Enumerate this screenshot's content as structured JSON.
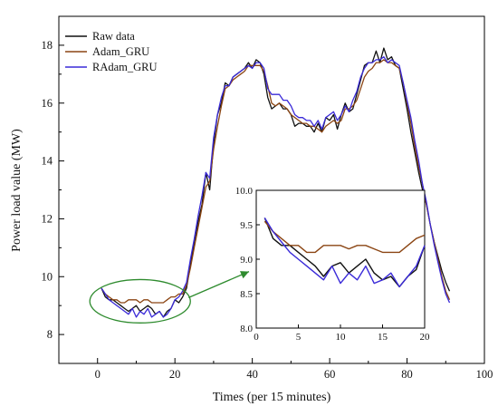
{
  "chart_data": {
    "type": "line",
    "xlabel": "Times (per 15 minutes)",
    "ylabel": "Power load value (MW)",
    "xlim": [
      -10,
      100
    ],
    "ylim": [
      7,
      19
    ],
    "xticks": [
      0,
      20,
      40,
      60,
      80,
      100
    ],
    "yticks": [
      8,
      10,
      12,
      14,
      16,
      18
    ],
    "legend_position": "top-left",
    "colors": {
      "Raw data": "#111111",
      "Adam_GRU": "#8b4513",
      "RAdam_GRU": "#3a2ad8",
      "annotation": "#2e8b2e"
    },
    "series": [
      {
        "name": "Raw data",
        "x": [
          1,
          2,
          3,
          4,
          5,
          6,
          7,
          8,
          9,
          10,
          11,
          12,
          13,
          14,
          15,
          16,
          17,
          18,
          19,
          20,
          21,
          22,
          23,
          24,
          25,
          26,
          27,
          28,
          29,
          30,
          31,
          32,
          33,
          34,
          35,
          36,
          37,
          38,
          39,
          40,
          41,
          42,
          43,
          44,
          45,
          46,
          47,
          48,
          49,
          50,
          51,
          52,
          53,
          54,
          55,
          56,
          57,
          58,
          59,
          60,
          61,
          62,
          63,
          64,
          65,
          66,
          67,
          68,
          69,
          70,
          71,
          72,
          73,
          74,
          75,
          76,
          77,
          78,
          79,
          80,
          81,
          82,
          83,
          84,
          85,
          86,
          87,
          88,
          89,
          90,
          91
        ],
        "y": [
          9.6,
          9.3,
          9.2,
          9.2,
          9.1,
          9.0,
          8.9,
          8.8,
          8.9,
          9.0,
          8.8,
          8.9,
          9.0,
          8.9,
          8.7,
          8.8,
          8.6,
          8.8,
          8.9,
          9.2,
          9.1,
          9.3,
          9.6,
          10.4,
          11.2,
          11.9,
          12.5,
          13.6,
          13.0,
          14.6,
          15.6,
          16.0,
          16.7,
          16.6,
          16.9,
          17.0,
          17.1,
          17.2,
          17.4,
          17.2,
          17.5,
          17.4,
          17.0,
          16.2,
          15.8,
          15.9,
          16.0,
          15.8,
          15.8,
          15.6,
          15.2,
          15.3,
          15.3,
          15.2,
          15.2,
          15.0,
          15.3,
          15.0,
          15.5,
          15.4,
          15.6,
          15.1,
          15.6,
          16.0,
          15.7,
          15.8,
          16.3,
          16.8,
          17.3,
          17.4,
          17.4,
          17.8,
          17.4,
          17.9,
          17.5,
          17.6,
          17.3,
          17.2,
          16.5,
          15.8,
          15.0,
          14.3,
          13.6,
          13.0,
          12.5,
          11.8,
          11.2,
          10.7,
          10.2,
          9.8,
          9.5
        ],
        "linestyle": "solid"
      },
      {
        "name": "Adam_GRU",
        "x": [
          1,
          2,
          3,
          4,
          5,
          6,
          7,
          8,
          9,
          10,
          11,
          12,
          13,
          14,
          15,
          16,
          17,
          18,
          19,
          20,
          21,
          22,
          23,
          24,
          25,
          26,
          27,
          28,
          29,
          30,
          31,
          32,
          33,
          34,
          35,
          36,
          37,
          38,
          39,
          40,
          41,
          42,
          43,
          44,
          45,
          46,
          47,
          48,
          49,
          50,
          51,
          52,
          53,
          54,
          55,
          56,
          57,
          58,
          59,
          60,
          61,
          62,
          63,
          64,
          65,
          66,
          67,
          68,
          69,
          70,
          71,
          72,
          73,
          74,
          75,
          76,
          77,
          78,
          79,
          80,
          81,
          82,
          83,
          84,
          85,
          86,
          87,
          88,
          89,
          90,
          91
        ],
        "y": [
          9.6,
          9.4,
          9.3,
          9.2,
          9.2,
          9.1,
          9.1,
          9.2,
          9.2,
          9.2,
          9.1,
          9.2,
          9.2,
          9.1,
          9.1,
          9.1,
          9.1,
          9.2,
          9.3,
          9.3,
          9.4,
          9.4,
          9.7,
          10.3,
          11.0,
          11.7,
          12.4,
          13.1,
          13.3,
          14.4,
          15.2,
          15.9,
          16.5,
          16.6,
          16.8,
          16.9,
          17.0,
          17.1,
          17.3,
          17.3,
          17.3,
          17.3,
          17.1,
          16.6,
          16.0,
          15.9,
          16.0,
          15.9,
          15.8,
          15.6,
          15.5,
          15.4,
          15.3,
          15.3,
          15.2,
          15.2,
          15.1,
          15.0,
          15.2,
          15.3,
          15.4,
          15.3,
          15.4,
          15.8,
          15.8,
          15.9,
          16.1,
          16.5,
          16.9,
          17.1,
          17.2,
          17.4,
          17.4,
          17.5,
          17.4,
          17.4,
          17.3,
          17.2,
          16.7,
          16.0,
          15.3,
          14.5,
          13.8,
          13.2,
          12.5,
          11.8,
          11.2,
          10.6,
          10.0,
          9.5,
          9.2
        ],
        "linestyle": "solid"
      },
      {
        "name": "RAdam_GRU",
        "x": [
          1,
          2,
          3,
          4,
          5,
          6,
          7,
          8,
          9,
          10,
          11,
          12,
          13,
          14,
          15,
          16,
          17,
          18,
          19,
          20,
          21,
          22,
          23,
          24,
          25,
          26,
          27,
          28,
          29,
          30,
          31,
          32,
          33,
          34,
          35,
          36,
          37,
          38,
          39,
          40,
          41,
          42,
          43,
          44,
          45,
          46,
          47,
          48,
          49,
          50,
          51,
          52,
          53,
          54,
          55,
          56,
          57,
          58,
          59,
          60,
          61,
          62,
          63,
          64,
          65,
          66,
          67,
          68,
          69,
          70,
          71,
          72,
          73,
          74,
          75,
          76,
          77,
          78,
          79,
          80,
          81,
          82,
          83,
          84,
          85,
          86,
          87,
          88,
          89,
          90,
          91
        ],
        "y": [
          9.6,
          9.4,
          9.2,
          9.1,
          9.0,
          8.9,
          8.8,
          8.7,
          8.9,
          8.6,
          8.8,
          8.7,
          8.9,
          8.6,
          8.7,
          8.8,
          8.6,
          8.7,
          8.9,
          9.2,
          9.3,
          9.5,
          9.8,
          10.6,
          11.3,
          12.1,
          12.8,
          13.6,
          13.4,
          14.8,
          15.6,
          16.2,
          16.6,
          16.6,
          16.9,
          17.0,
          17.1,
          17.2,
          17.3,
          17.2,
          17.4,
          17.4,
          17.2,
          16.5,
          16.3,
          16.3,
          16.3,
          16.1,
          16.1,
          15.9,
          15.6,
          15.5,
          15.5,
          15.4,
          15.4,
          15.2,
          15.4,
          15.1,
          15.5,
          15.6,
          15.7,
          15.4,
          15.6,
          15.9,
          15.7,
          16.1,
          16.4,
          16.9,
          17.2,
          17.4,
          17.4,
          17.5,
          17.5,
          17.6,
          17.4,
          17.5,
          17.4,
          17.3,
          16.7,
          16.1,
          15.5,
          14.7,
          14.0,
          13.2,
          12.6,
          11.8,
          11.1,
          10.5,
          9.9,
          9.4,
          9.1
        ],
        "linestyle": "solid"
      }
    ],
    "annotation": {
      "type": "ellipse",
      "x_range": [
        -2,
        24
      ],
      "y_range": [
        8.4,
        9.9
      ]
    },
    "inset": {
      "xlim": [
        0,
        20
      ],
      "ylim": [
        8.0,
        10.0
      ],
      "xticks": [
        0,
        5,
        10,
        15,
        20
      ],
      "yticks": [
        8.0,
        8.5,
        9.0,
        9.5,
        10.0
      ],
      "yticklabels": [
        "8.0",
        "8.5",
        "9.0",
        "9.5",
        "10.0"
      ],
      "series": [
        {
          "name": "Raw data",
          "x": [
            1,
            2,
            3,
            4,
            5,
            6,
            7,
            8,
            9,
            10,
            11,
            12,
            13,
            14,
            15,
            16,
            17,
            18,
            19,
            20
          ],
          "y": [
            9.6,
            9.3,
            9.2,
            9.2,
            9.1,
            9.0,
            8.9,
            8.75,
            8.9,
            8.95,
            8.8,
            8.9,
            9.0,
            8.8,
            8.7,
            8.75,
            8.6,
            8.75,
            8.85,
            9.2
          ]
        },
        {
          "name": "Adam_GRU",
          "x": [
            1,
            2,
            3,
            4,
            5,
            6,
            7,
            8,
            9,
            10,
            11,
            12,
            13,
            14,
            15,
            16,
            17,
            18,
            19,
            20
          ],
          "y": [
            9.55,
            9.4,
            9.3,
            9.2,
            9.2,
            9.1,
            9.1,
            9.2,
            9.2,
            9.2,
            9.15,
            9.2,
            9.2,
            9.15,
            9.1,
            9.1,
            9.1,
            9.2,
            9.3,
            9.35
          ]
        },
        {
          "name": "RAdam_GRU",
          "x": [
            1,
            2,
            3,
            4,
            5,
            6,
            7,
            8,
            9,
            10,
            11,
            12,
            13,
            14,
            15,
            16,
            17,
            18,
            19,
            20
          ],
          "y": [
            9.6,
            9.4,
            9.25,
            9.1,
            9.0,
            8.9,
            8.8,
            8.7,
            8.9,
            8.65,
            8.8,
            8.7,
            8.9,
            8.65,
            8.7,
            8.8,
            8.6,
            8.75,
            8.9,
            9.2
          ]
        }
      ]
    }
  }
}
